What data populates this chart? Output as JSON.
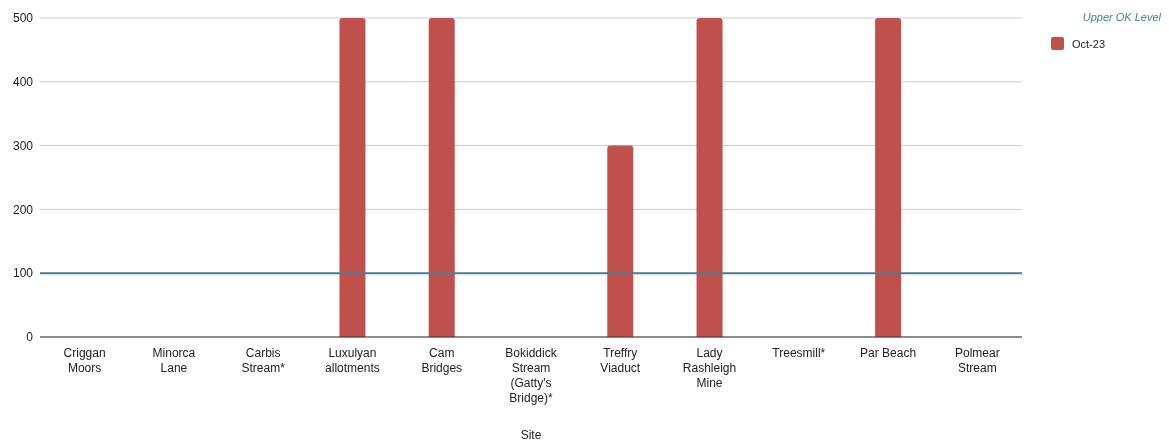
{
  "chart_data": {
    "type": "bar",
    "xlabel": "Site",
    "categories": [
      "Criggan Moors",
      "Minorca Lane",
      "Carbis Stream*",
      "Luxulyan allotments",
      "Cam Bridges",
      "Bokiddick Stream (Gatty's Bridge)*",
      "Treffry Viaduct",
      "Lady Rashleigh Mine",
      "Treesmill*",
      "Par Beach",
      "Polmear Stream"
    ],
    "series": [
      {
        "name": "Oct-23",
        "color": "#c0504d",
        "values": [
          null,
          null,
          null,
          500,
          500,
          null,
          300,
          500,
          null,
          500,
          null
        ]
      }
    ],
    "ylim": [
      0,
      500
    ],
    "yticks": [
      0,
      100,
      200,
      300,
      400,
      500
    ],
    "grid": "y",
    "legend": "right",
    "ref_lines": [
      {
        "axis": "y",
        "value": 100,
        "label": "Upper OK Level",
        "color": "#4a7f95"
      }
    ]
  }
}
